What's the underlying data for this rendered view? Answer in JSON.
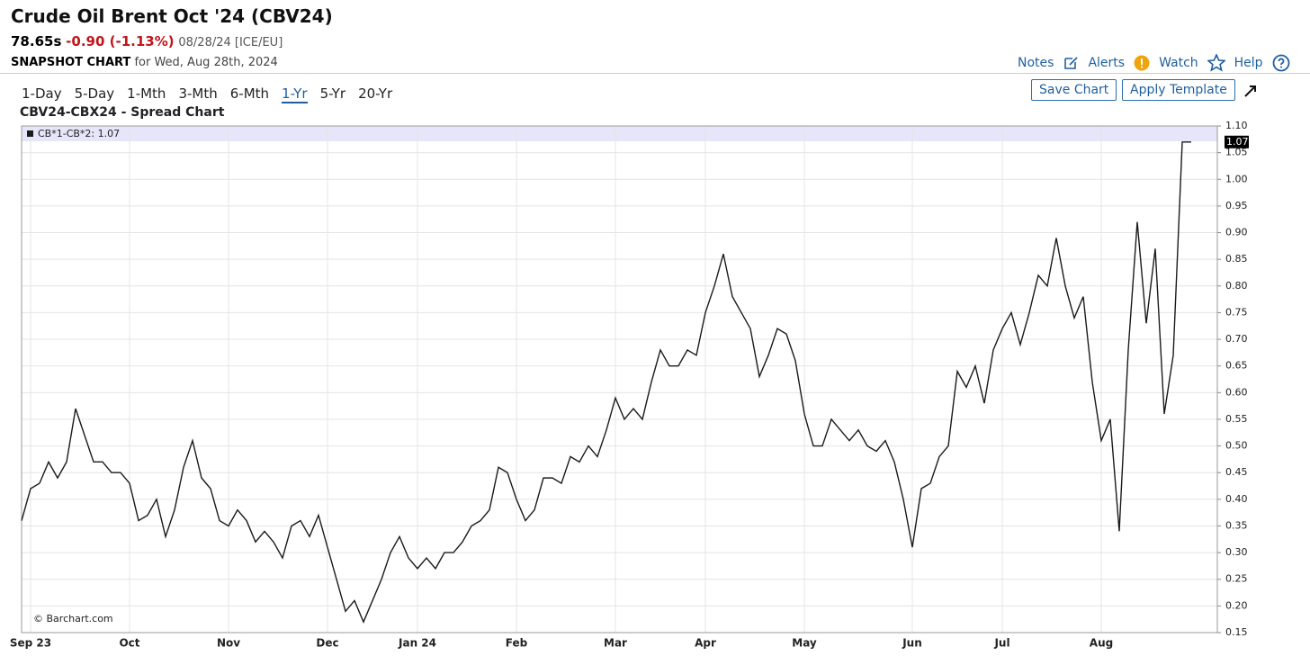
{
  "header": {
    "title": "Crude Oil Brent Oct '24 (CBV24)",
    "price": "78.65s",
    "change": "-0.90 (-1.13%)",
    "quote_info": "08/28/24 [ICE/EU]",
    "snapshot": "SNAPSHOT CHART",
    "snapshot_date": "for Wed, Aug 28th, 2024",
    "links": [
      "Notes",
      "Alerts",
      "Watch",
      "Help"
    ]
  },
  "toolbar": {
    "periods": [
      "1-Day",
      "5-Day",
      "1-Mth",
      "3-Mth",
      "6-Mth",
      "1-Yr",
      "5-Yr",
      "20-Yr"
    ],
    "active": "1-Yr",
    "buttons": [
      "Save Chart",
      "Apply Template"
    ]
  },
  "chart_data": {
    "type": "line",
    "title": "CBV24-CBX24 - Spread Chart",
    "watermark": "© Barchart.com",
    "grid": true,
    "categories": [
      null,
      "Sep 23",
      null,
      null,
      null,
      null,
      null,
      null,
      null,
      null,
      null,
      null,
      "Oct",
      null,
      null,
      null,
      null,
      null,
      null,
      null,
      null,
      null,
      null,
      "Nov",
      null,
      null,
      null,
      null,
      null,
      null,
      null,
      null,
      null,
      null,
      "Dec",
      null,
      null,
      null,
      null,
      null,
      null,
      null,
      null,
      null,
      "Jan 24",
      null,
      null,
      null,
      null,
      null,
      null,
      null,
      null,
      null,
      null,
      "Feb",
      null,
      null,
      null,
      null,
      null,
      null,
      null,
      null,
      null,
      null,
      "Mar",
      null,
      null,
      null,
      null,
      null,
      null,
      null,
      null,
      null,
      "Apr",
      null,
      null,
      null,
      null,
      null,
      null,
      null,
      null,
      null,
      null,
      "May",
      null,
      null,
      null,
      null,
      null,
      null,
      null,
      null,
      null,
      null,
      null,
      "Jun",
      null,
      null,
      null,
      null,
      null,
      null,
      null,
      null,
      null,
      "Jul",
      null,
      null,
      null,
      null,
      null,
      null,
      null,
      null,
      null,
      null,
      "Aug",
      null,
      null,
      null,
      null,
      null,
      null,
      null,
      null,
      null,
      null
    ],
    "series": [
      {
        "name": "CB*1-CB*2: 1.07",
        "color": "#1a1a1a",
        "values": [
          0.36,
          0.42,
          0.43,
          0.47,
          0.44,
          0.47,
          0.57,
          0.52,
          0.47,
          0.47,
          0.45,
          0.45,
          0.43,
          0.36,
          0.37,
          0.4,
          0.33,
          0.38,
          0.46,
          0.51,
          0.44,
          0.42,
          0.36,
          0.35,
          0.38,
          0.36,
          0.32,
          0.34,
          0.32,
          0.29,
          0.35,
          0.36,
          0.33,
          0.37,
          0.31,
          0.25,
          0.19,
          0.21,
          0.17,
          0.21,
          0.25,
          0.3,
          0.33,
          0.29,
          0.27,
          0.29,
          0.27,
          0.3,
          0.3,
          0.32,
          0.35,
          0.36,
          0.38,
          0.46,
          0.45,
          0.4,
          0.36,
          0.38,
          0.44,
          0.44,
          0.43,
          0.48,
          0.47,
          0.5,
          0.48,
          0.53,
          0.59,
          0.55,
          0.57,
          0.55,
          0.62,
          0.68,
          0.65,
          0.65,
          0.68,
          0.67,
          0.75,
          0.8,
          0.86,
          0.78,
          0.75,
          0.72,
          0.63,
          0.67,
          0.72,
          0.71,
          0.66,
          0.56,
          0.5,
          0.5,
          0.55,
          0.53,
          0.51,
          0.53,
          0.5,
          0.49,
          0.51,
          0.47,
          0.4,
          0.31,
          0.42,
          0.43,
          0.48,
          0.5,
          0.64,
          0.61,
          0.65,
          0.58,
          0.68,
          0.72,
          0.75,
          0.69,
          0.75,
          0.82,
          0.8,
          0.89,
          0.8,
          0.74,
          0.78,
          0.62,
          0.51,
          0.55,
          0.34,
          0.68,
          0.92,
          0.73,
          0.87,
          0.56,
          0.67,
          1.07,
          1.07
        ]
      }
    ],
    "ylim": [
      0.15,
      1.1
    ],
    "yticks": [
      0.15,
      {
        "value": 0.2,
        "label": "0.20"
      },
      0.25,
      {
        "value": 0.3,
        "label": "0.30"
      },
      0.35,
      {
        "value": 0.4,
        "label": "0.40"
      },
      0.45,
      {
        "value": 0.5,
        "label": "0.50"
      },
      0.55,
      {
        "value": 0.6,
        "label": "0.60"
      },
      0.65,
      {
        "value": 0.7,
        "label": "0.70"
      },
      0.75,
      {
        "value": 0.8,
        "label": "0.80"
      },
      0.85,
      {
        "value": 0.9,
        "label": "0.90"
      },
      0.95,
      {
        "value": 1.0,
        "label": "1.00"
      },
      1.05,
      {
        "value": 1.1,
        "label": "1.10"
      }
    ]
  }
}
